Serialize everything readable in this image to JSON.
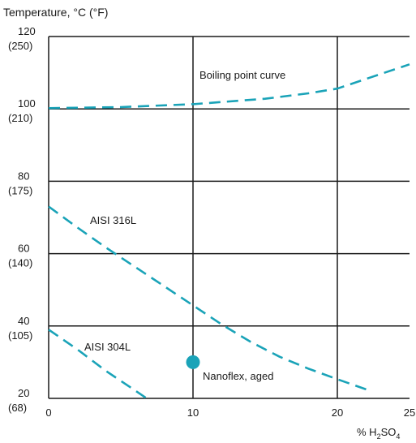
{
  "chart_data": {
    "type": "line",
    "title": "Temperature, °C (°F)",
    "xlabel": "% H2SO4",
    "xlim": [
      0,
      25
    ],
    "ylim": [
      20,
      120
    ],
    "grid": true,
    "accent_color": "#1aa3b8",
    "x_ticks": [
      {
        "value": 0,
        "label": "0"
      },
      {
        "value": 10,
        "label": "10"
      },
      {
        "value": 20,
        "label": "20"
      },
      {
        "value": 25,
        "label": "25"
      }
    ],
    "y_ticks": [
      {
        "value": 120,
        "label": "120",
        "sub": "(250)"
      },
      {
        "value": 100,
        "label": "100",
        "sub": "(210)"
      },
      {
        "value": 80,
        "label": "80",
        "sub": "(175)"
      },
      {
        "value": 60,
        "label": "60",
        "sub": "(140)"
      },
      {
        "value": 40,
        "label": "40",
        "sub": "(105)"
      },
      {
        "value": 20,
        "label": "20",
        "sub": "(68)"
      }
    ],
    "series": [
      {
        "name": "Boiling point curve",
        "style": "dashed",
        "x": [
          0,
          5,
          10,
          15,
          18,
          20,
          22,
          25
        ],
        "y": [
          100.2,
          100.5,
          101.3,
          102.8,
          104.3,
          105.6,
          108.3,
          112.3
        ]
      },
      {
        "name": "AISI 316L",
        "style": "dashed",
        "x": [
          0,
          2,
          4,
          6,
          8,
          10,
          12,
          14,
          16,
          18,
          20,
          22
        ],
        "y": [
          73,
          67.2,
          61.6,
          56.3,
          51,
          45.7,
          40.4,
          35.6,
          31.5,
          28.2,
          25.3,
          22.5
        ]
      },
      {
        "name": "AISI 304L",
        "style": "dashed",
        "x": [
          0,
          2,
          4,
          5.5,
          6.8
        ],
        "y": [
          39,
          33.5,
          27.5,
          23.5,
          20
        ]
      }
    ],
    "points": [
      {
        "name": "Nanoflex, aged",
        "x": 10,
        "y": 30
      }
    ],
    "annotations": {
      "boiling": "Boiling point curve",
      "s316": "AISI 316L",
      "s304": "AISI 304L",
      "nanoflex": "Nanoflex, aged"
    }
  }
}
